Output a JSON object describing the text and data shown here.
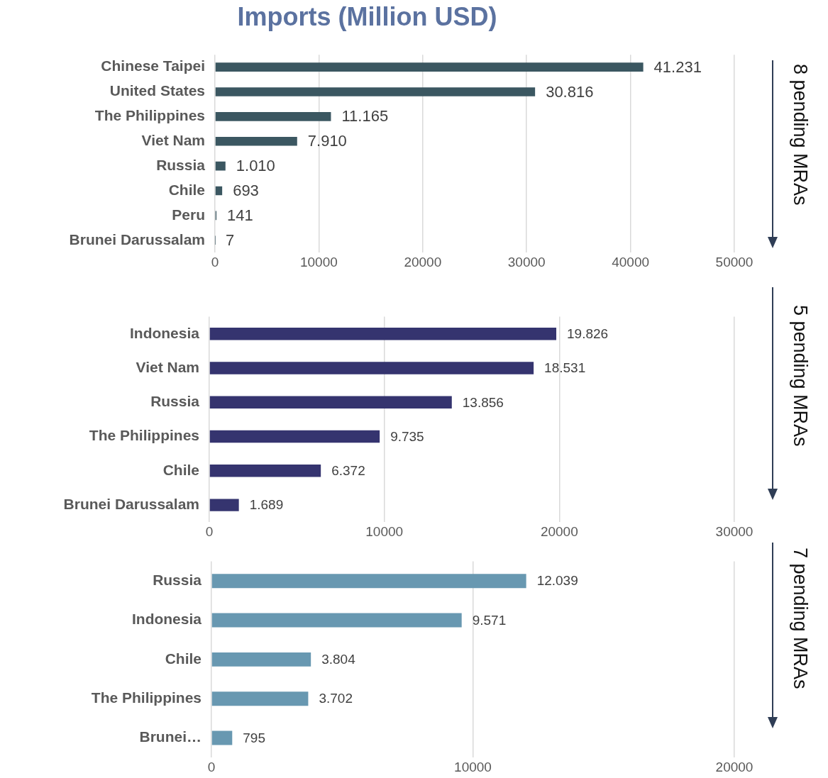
{
  "chart_data": [
    {
      "type": "bar",
      "orientation": "horizontal",
      "title": "Imports (Million USD)",
      "categories": [
        "Chinese Taipei",
        "United States",
        "The Philippines",
        "Viet Nam",
        "Russia",
        "Chile",
        "Peru",
        "Brunei Darussalam"
      ],
      "values": [
        41231,
        30816,
        11165,
        7910,
        1010,
        693,
        141,
        7
      ],
      "value_labels": [
        "41.231",
        "30.816",
        "11.165",
        "7.910",
        "1.010",
        "693",
        "141",
        "7"
      ],
      "color": "#3b5761",
      "xlim": [
        0,
        50000
      ],
      "xticks": [
        0,
        10000,
        20000,
        30000,
        40000,
        50000
      ],
      "grid": "x",
      "legend": false,
      "annotations": [
        "8 pending MRAs"
      ]
    },
    {
      "type": "bar",
      "orientation": "horizontal",
      "categories": [
        "Indonesia",
        "Viet Nam",
        "Russia",
        "The Philippines",
        "Chile",
        "Brunei Darussalam"
      ],
      "values": [
        19826,
        18531,
        13856,
        9735,
        6372,
        1689
      ],
      "value_labels": [
        "19.826",
        "18.531",
        "13.856",
        "9.735",
        "6.372",
        "1.689"
      ],
      "color": "#35346f",
      "xlim": [
        0,
        30000
      ],
      "xticks": [
        0,
        10000,
        20000,
        30000
      ],
      "grid": "x",
      "legend": false,
      "annotations": [
        "5 pending MRAs"
      ]
    },
    {
      "type": "bar",
      "orientation": "horizontal",
      "categories": [
        "Russia",
        "Indonesia",
        "Chile",
        "The Philippines",
        "Brunei…"
      ],
      "values": [
        12039,
        9571,
        3804,
        3702,
        795
      ],
      "value_labels": [
        "12.039",
        "9.571",
        "3.804",
        "3.702",
        "795"
      ],
      "color": "#6898b1",
      "xlim": [
        0,
        20000
      ],
      "xticks": [
        0,
        10000,
        20000
      ],
      "grid": "x",
      "legend": false,
      "annotations": [
        "7 pending MRAs"
      ]
    }
  ]
}
